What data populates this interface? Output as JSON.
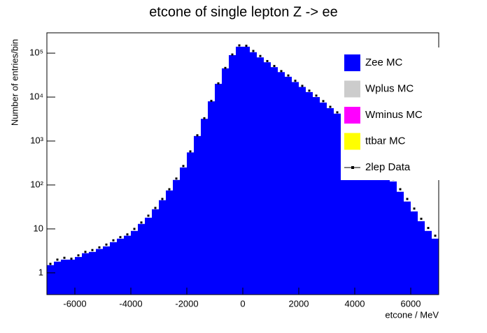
{
  "chart_data": {
    "type": "histogram",
    "title": "etcone of single lepton Z -> ee",
    "xlabel": "etcone / MeV",
    "ylabel": "Number of entries/bin",
    "log_y": true,
    "xlim": [
      -7000,
      7000
    ],
    "xticks": [
      -6000,
      -4000,
      -2000,
      0,
      2000,
      4000,
      6000
    ],
    "ylim": [
      0.32,
      290000
    ],
    "yticks": [
      1,
      10,
      {
        "value": 100,
        "label": "10²"
      },
      {
        "value": 1000,
        "label": "10³"
      },
      {
        "value": 10000,
        "label": "10⁴"
      },
      {
        "value": 100000,
        "label": "10⁵"
      }
    ],
    "bins": [
      -7000,
      -6750,
      -6500,
      -6250,
      -6000,
      -5750,
      -5500,
      -5250,
      -5000,
      -4750,
      -4500,
      -4250,
      -4000,
      -3750,
      -3500,
      -3250,
      -3000,
      -2750,
      -2500,
      -2250,
      -2000,
      -1750,
      -1500,
      -1250,
      -1000,
      -750,
      -500,
      -250,
      0,
      250,
      500,
      750,
      1000,
      1250,
      1500,
      1750,
      2000,
      2250,
      2500,
      2750,
      3000,
      3250,
      3500,
      3750,
      4000,
      4250,
      4500,
      4750,
      5000,
      5250,
      5500,
      5750,
      6000,
      6250,
      6500,
      6750,
      7000
    ],
    "series": [
      {
        "name": "Zee MC",
        "color": "#0000ff",
        "values": [
          1.5,
          1.8,
          2,
          2,
          2.3,
          2.8,
          3,
          3.5,
          4,
          5,
          6,
          7,
          9,
          13,
          18,
          28,
          45,
          75,
          130,
          250,
          550,
          1300,
          3200,
          8000,
          20000,
          45000,
          90000,
          140000,
          140000,
          105000,
          80000,
          62000,
          48000,
          37000,
          29000,
          22000,
          17000,
          13000,
          10000,
          7500,
          5600,
          4200,
          3000,
          2100,
          1400,
          900,
          550,
          330,
          200,
          120,
          70,
          42,
          25,
          15,
          9,
          6
        ]
      },
      {
        "name": "Wplus MC",
        "color": "#cccccc",
        "values": [
          0,
          0,
          0,
          0,
          0,
          0,
          0,
          0,
          0,
          0,
          0,
          0,
          0,
          0,
          0,
          0,
          0,
          0,
          0,
          0,
          0,
          0,
          0,
          0,
          0,
          0,
          0,
          0,
          0,
          0,
          0,
          0,
          0,
          0,
          0,
          0,
          0,
          0,
          0,
          0,
          0,
          0,
          0,
          0,
          0,
          0,
          0,
          0,
          0,
          0,
          0,
          0,
          0,
          0,
          0,
          0
        ]
      },
      {
        "name": "Wminus MC",
        "color": "#ff00ff",
        "values": [
          0,
          0,
          0,
          0,
          0,
          0,
          0,
          0,
          0,
          0,
          0,
          0,
          0,
          0,
          0,
          0,
          0,
          0,
          0,
          0,
          0,
          0,
          0,
          0,
          0,
          0,
          0,
          0,
          0,
          0,
          0,
          0,
          0,
          0,
          0,
          0,
          0,
          0,
          0,
          0,
          0,
          0,
          0,
          0,
          0,
          0,
          0,
          0,
          0,
          0,
          0,
          0,
          0,
          0,
          0,
          0
        ]
      },
      {
        "name": "ttbar MC",
        "color": "#ffff00",
        "values": [
          0,
          0,
          0,
          0,
          0,
          0,
          0,
          0,
          0,
          0,
          0,
          0,
          0,
          0,
          0,
          0,
          0,
          0,
          0,
          0,
          0,
          0,
          0,
          0,
          0,
          0,
          0,
          0,
          0,
          0,
          0,
          0,
          0,
          0,
          0,
          0,
          0,
          0,
          0,
          0,
          0,
          0,
          0,
          0,
          0,
          0,
          0,
          0,
          0,
          0,
          0,
          0,
          0,
          0,
          0,
          0
        ]
      }
    ],
    "data": {
      "name": "2lep Data",
      "color": "#000000",
      "values": [
        1.6,
        2,
        2.2,
        2.1,
        2.5,
        3,
        3.3,
        3.8,
        4.4,
        5.5,
        6.5,
        7.5,
        10,
        14,
        20,
        30,
        48,
        80,
        140,
        270,
        580,
        1350,
        3300,
        8200,
        20500,
        46000,
        93000,
        150000,
        147000,
        112000,
        86000,
        66000,
        51000,
        39000,
        31000,
        23500,
        18000,
        14000,
        10800,
        8100,
        6000,
        4500,
        3250,
        2300,
        1550,
        1000,
        610,
        370,
        225,
        135,
        80,
        48,
        29,
        17,
        10.5,
        7
      ]
    }
  }
}
